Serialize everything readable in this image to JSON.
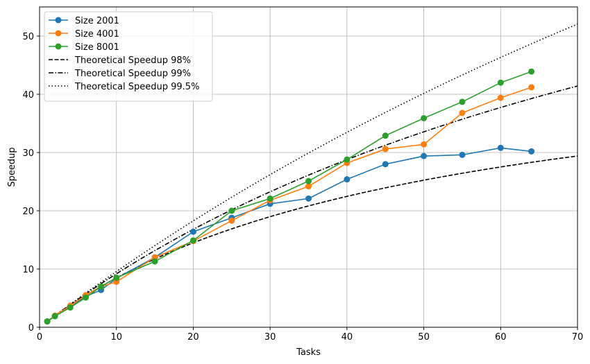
{
  "chart_data": {
    "type": "line",
    "title": "",
    "xlabel": "Tasks",
    "ylabel": "Speedup",
    "xlim": [
      0,
      70
    ],
    "ylim": [
      0,
      55
    ],
    "xticks": [
      0,
      10,
      20,
      30,
      40,
      50,
      60,
      70
    ],
    "yticks": [
      0,
      10,
      20,
      30,
      40,
      50
    ],
    "grid": true,
    "legend_position": "top-left",
    "x": [
      1,
      2,
      4,
      6,
      8,
      10,
      15,
      20,
      25,
      30,
      35,
      40,
      45,
      50,
      55,
      60,
      64
    ],
    "series": [
      {
        "name": "Size 2001",
        "color": "#1f77b4",
        "marker": "circle",
        "values": [
          1.0,
          1.9,
          3.6,
          5.3,
          6.4,
          8.4,
          12.0,
          16.4,
          18.8,
          21.2,
          22.1,
          25.4,
          28.0,
          29.4,
          29.6,
          30.8,
          30.2
        ]
      },
      {
        "name": "Size 4001",
        "color": "#ff7f0e",
        "marker": "circle",
        "values": [
          1.0,
          2.0,
          3.7,
          5.5,
          7.0,
          7.8,
          12.0,
          14.8,
          18.3,
          21.8,
          24.2,
          28.2,
          30.6,
          31.4,
          36.8,
          39.4,
          41.2
        ]
      },
      {
        "name": "Size 8001",
        "color": "#2ca02c",
        "marker": "circle",
        "values": [
          1.0,
          1.9,
          3.4,
          5.1,
          7.0,
          8.5,
          11.3,
          14.9,
          20.0,
          22.1,
          25.1,
          28.8,
          32.9,
          35.9,
          38.7,
          42.0,
          43.9
        ]
      }
    ],
    "theoretical": [
      {
        "name": "Theoretical Speedup 98%",
        "parallel_fraction": 0.98,
        "style": "dashed",
        "color": "#000000"
      },
      {
        "name": "Theoretical Speedup 99%",
        "parallel_fraction": 0.99,
        "style": "dashdot",
        "color": "#000000"
      },
      {
        "name": "Theoretical Speedup 99.5%",
        "parallel_fraction": 0.995,
        "style": "dotted",
        "color": "#000000"
      }
    ]
  }
}
